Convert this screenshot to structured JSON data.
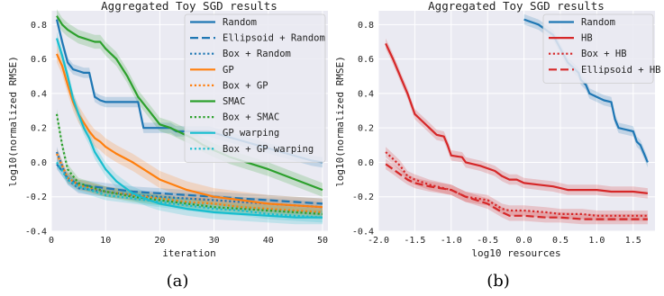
{
  "chart_data": [
    {
      "type": "line",
      "title": "Aggregated Toy SGD results",
      "xlabel": "iteration",
      "ylabel": "log10(normalized RMSE)",
      "caption": "(a)",
      "xlim": [
        0,
        51
      ],
      "ylim": [
        -0.4,
        0.88
      ],
      "xticks": [
        0,
        10,
        20,
        30,
        40,
        50
      ],
      "yticks": [
        -0.4,
        -0.2,
        0.0,
        0.2,
        0.4,
        0.6,
        0.8
      ],
      "grid": true,
      "legend": "top-right",
      "series": [
        {
          "name": "Random",
          "color": "#1f77b4",
          "dash": "solid",
          "band": 0.03,
          "x": [
            1,
            2,
            3,
            4,
            5,
            6,
            7,
            8,
            9,
            10,
            16,
            17,
            22,
            23,
            28,
            29,
            48,
            50
          ],
          "y": [
            0.83,
            0.7,
            0.58,
            0.54,
            0.53,
            0.52,
            0.52,
            0.38,
            0.36,
            0.35,
            0.35,
            0.2,
            0.2,
            0.18,
            0.18,
            0.18,
            0.01,
            0.0
          ]
        },
        {
          "name": "Ellipsoid + Random",
          "color": "#1f77b4",
          "dash": "dashed",
          "band": 0.03,
          "x": [
            1,
            3,
            5,
            10,
            15,
            20,
            25,
            30,
            35,
            40,
            45,
            50
          ],
          "y": [
            -0.01,
            -0.09,
            -0.13,
            -0.15,
            -0.17,
            -0.18,
            -0.19,
            -0.2,
            -0.21,
            -0.22,
            -0.23,
            -0.24
          ]
        },
        {
          "name": "Box + Random",
          "color": "#1f77b4",
          "dash": "dotted",
          "band": 0.03,
          "x": [
            1,
            3,
            5,
            10,
            15,
            20,
            25,
            30,
            35,
            40,
            45,
            50
          ],
          "y": [
            0.06,
            -0.1,
            -0.15,
            -0.17,
            -0.19,
            -0.2,
            -0.21,
            -0.22,
            -0.23,
            -0.24,
            -0.25,
            -0.26
          ]
        },
        {
          "name": "GP",
          "color": "#ff7f0e",
          "dash": "solid",
          "band": 0.05,
          "x": [
            1,
            2,
            3,
            4,
            5,
            6,
            7,
            8,
            9,
            10,
            12,
            15,
            20,
            25,
            30,
            35,
            40,
            45,
            50
          ],
          "y": [
            0.63,
            0.56,
            0.45,
            0.35,
            0.28,
            0.23,
            0.18,
            0.14,
            0.12,
            0.09,
            0.05,
            0.0,
            -0.1,
            -0.16,
            -0.2,
            -0.22,
            -0.24,
            -0.25,
            -0.26
          ]
        },
        {
          "name": "Box + GP",
          "color": "#ff7f0e",
          "dash": "dotted",
          "band": 0.03,
          "x": [
            1,
            3,
            5,
            10,
            15,
            20,
            25,
            30,
            35,
            40,
            45,
            50
          ],
          "y": [
            0.05,
            -0.09,
            -0.13,
            -0.17,
            -0.19,
            -0.21,
            -0.23,
            -0.24,
            -0.26,
            -0.27,
            -0.28,
            -0.29
          ]
        },
        {
          "name": "SMAC",
          "color": "#2ca02c",
          "dash": "solid",
          "band": 0.04,
          "x": [
            1,
            2,
            3,
            4,
            5,
            6,
            7,
            8,
            9,
            10,
            12,
            14,
            16,
            18,
            20,
            22,
            24,
            26,
            28,
            30,
            33,
            36,
            40,
            45,
            50
          ],
          "y": [
            0.85,
            0.8,
            0.77,
            0.75,
            0.73,
            0.72,
            0.71,
            0.7,
            0.7,
            0.66,
            0.6,
            0.5,
            0.38,
            0.3,
            0.22,
            0.2,
            0.17,
            0.14,
            0.1,
            0.07,
            0.03,
            0.0,
            -0.04,
            -0.1,
            -0.16
          ]
        },
        {
          "name": "Box + SMAC",
          "color": "#2ca02c",
          "dash": "dotted",
          "band": 0.03,
          "x": [
            1,
            2,
            3,
            5,
            10,
            15,
            20,
            25,
            30,
            35,
            40,
            45,
            50
          ],
          "y": [
            0.28,
            0.1,
            -0.04,
            -0.12,
            -0.17,
            -0.2,
            -0.22,
            -0.24,
            -0.26,
            -0.27,
            -0.28,
            -0.29,
            -0.3
          ]
        },
        {
          "name": "GP warping",
          "color": "#17becf",
          "dash": "solid",
          "band": 0.04,
          "x": [
            1,
            2,
            3,
            4,
            5,
            6,
            7,
            8,
            9,
            10,
            12,
            15,
            18,
            20,
            25,
            30,
            35,
            40,
            45,
            50
          ],
          "y": [
            0.72,
            0.62,
            0.5,
            0.37,
            0.28,
            0.2,
            0.14,
            0.06,
            0.01,
            -0.04,
            -0.11,
            -0.18,
            -0.22,
            -0.24,
            -0.27,
            -0.29,
            -0.3,
            -0.31,
            -0.32,
            -0.32
          ]
        },
        {
          "name": "Box + GP warping",
          "color": "#17becf",
          "dash": "dotted",
          "band": 0.03,
          "x": [
            1,
            3,
            5,
            10,
            15,
            20,
            25,
            30,
            35,
            40,
            45,
            50
          ],
          "y": [
            0.0,
            -0.1,
            -0.14,
            -0.19,
            -0.21,
            -0.23,
            -0.25,
            -0.27,
            -0.28,
            -0.3,
            -0.31,
            -0.32
          ]
        }
      ]
    },
    {
      "type": "line",
      "title": "Aggregated Toy SGD results",
      "xlabel": "log10 resources",
      "ylabel": "log10(normalized RMSE)",
      "caption": "(b)",
      "xlim": [
        -2.0,
        1.8
      ],
      "ylim": [
        -0.4,
        0.88
      ],
      "xticks": [
        -2.0,
        -1.5,
        -1.0,
        -0.5,
        0.0,
        0.5,
        1.0,
        1.5
      ],
      "yticks": [
        -0.4,
        -0.2,
        0.0,
        0.2,
        0.4,
        0.6,
        0.8
      ],
      "grid": true,
      "legend": "top-right",
      "series": [
        {
          "name": "Random",
          "color": "#1f77b4",
          "dash": "solid",
          "band": 0.03,
          "x": [
            0.0,
            0.2,
            0.4,
            0.6,
            0.75,
            0.78,
            0.85,
            0.9,
            1.0,
            1.1,
            1.2,
            1.25,
            1.3,
            1.4,
            1.5,
            1.55,
            1.6,
            1.65,
            1.7
          ],
          "y": [
            0.83,
            0.8,
            0.74,
            0.58,
            0.52,
            0.48,
            0.45,
            0.4,
            0.38,
            0.36,
            0.35,
            0.25,
            0.2,
            0.19,
            0.18,
            0.12,
            0.1,
            0.05,
            0.0
          ]
        },
        {
          "name": "HB",
          "color": "#d62728",
          "dash": "solid",
          "band": 0.03,
          "x": [
            -1.9,
            -1.8,
            -1.7,
            -1.6,
            -1.5,
            -1.4,
            -1.3,
            -1.2,
            -1.1,
            -1.05,
            -1.0,
            -0.85,
            -0.8,
            -0.6,
            -0.4,
            -0.3,
            -0.2,
            -0.1,
            0.0,
            0.2,
            0.4,
            0.5,
            0.6,
            0.8,
            1.0,
            1.2,
            1.5,
            1.7
          ],
          "y": [
            0.69,
            0.6,
            0.5,
            0.4,
            0.28,
            0.24,
            0.2,
            0.16,
            0.15,
            0.1,
            0.04,
            0.03,
            0.0,
            -0.02,
            -0.05,
            -0.08,
            -0.1,
            -0.1,
            -0.12,
            -0.13,
            -0.14,
            -0.15,
            -0.16,
            -0.16,
            -0.16,
            -0.17,
            -0.17,
            -0.18
          ]
        },
        {
          "name": "Box + HB",
          "color": "#d62728",
          "dash": "dotted",
          "band": 0.03,
          "x": [
            -1.9,
            -1.8,
            -1.7,
            -1.6,
            -1.5,
            -1.3,
            -1.0,
            -0.8,
            -0.5,
            -0.3,
            -0.2,
            0.0,
            0.3,
            0.5,
            0.8,
            1.0,
            1.2,
            1.5,
            1.7
          ],
          "y": [
            0.06,
            0.02,
            -0.02,
            -0.08,
            -0.1,
            -0.13,
            -0.16,
            -0.2,
            -0.22,
            -0.27,
            -0.28,
            -0.28,
            -0.29,
            -0.3,
            -0.3,
            -0.31,
            -0.31,
            -0.31,
            -0.31
          ]
        },
        {
          "name": "Ellipsoid + HB",
          "color": "#d62728",
          "dash": "dashed",
          "band": 0.03,
          "x": [
            -1.9,
            -1.8,
            -1.7,
            -1.6,
            -1.5,
            -1.3,
            -1.0,
            -0.8,
            -0.5,
            -0.3,
            -0.2,
            0.0,
            0.3,
            0.5,
            0.8,
            1.0,
            1.2,
            1.5,
            1.7
          ],
          "y": [
            -0.01,
            -0.04,
            -0.07,
            -0.1,
            -0.12,
            -0.14,
            -0.16,
            -0.2,
            -0.24,
            -0.29,
            -0.31,
            -0.31,
            -0.32,
            -0.32,
            -0.33,
            -0.33,
            -0.33,
            -0.33,
            -0.33
          ]
        }
      ]
    }
  ]
}
